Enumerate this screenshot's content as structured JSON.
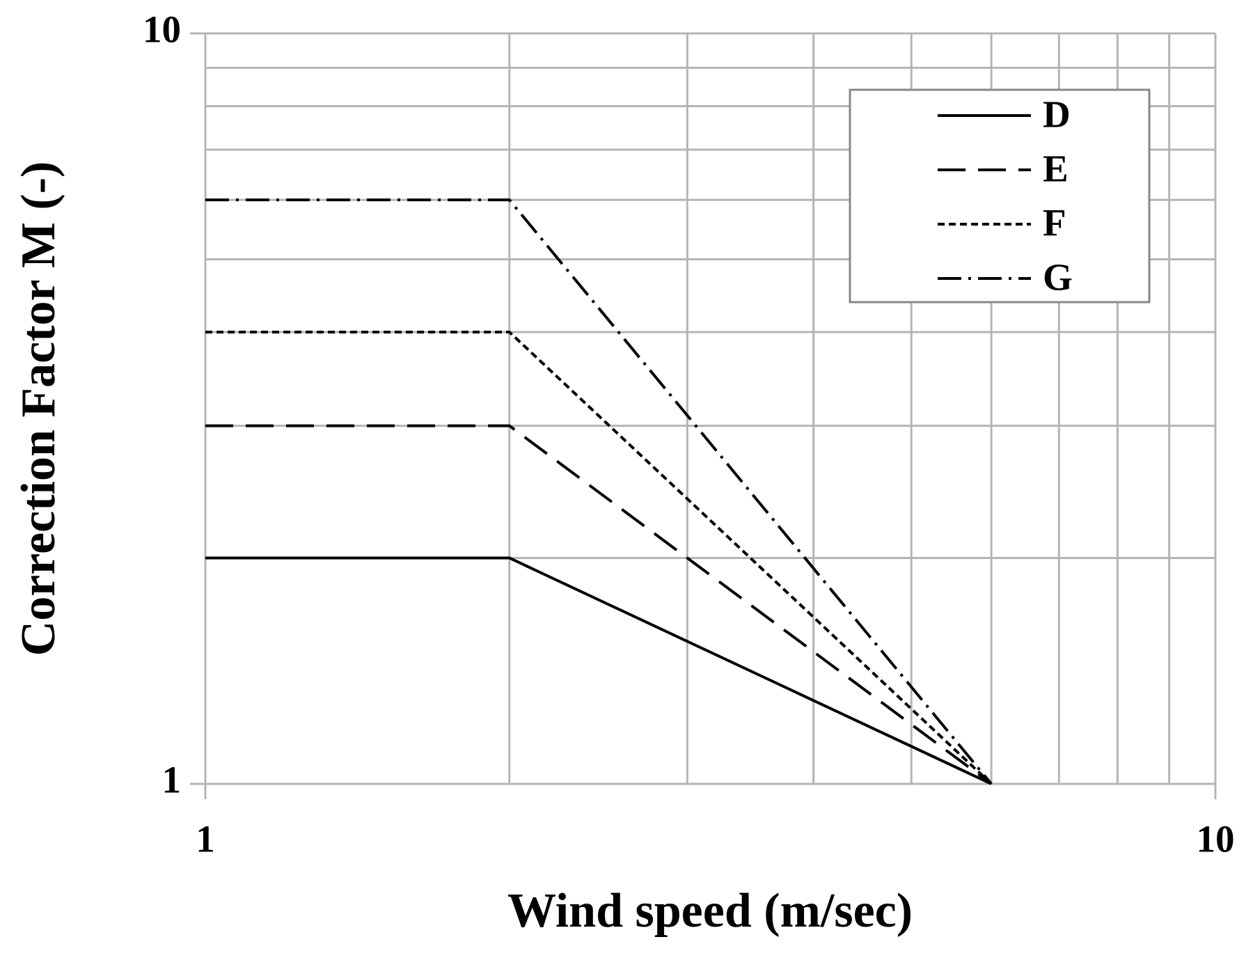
{
  "chart_data": {
    "type": "line",
    "x_label": "Wind speed (m/sec)",
    "y_label": "Correction Factor M (-)",
    "x": [
      1,
      2,
      6
    ],
    "series": [
      {
        "name": "D",
        "color": "#000000",
        "dash": "solid",
        "values": [
          2,
          2,
          1
        ]
      },
      {
        "name": "E",
        "color": "#000000",
        "dash": "dashed",
        "values": [
          3,
          3,
          1
        ]
      },
      {
        "name": "F",
        "color": "#000000",
        "dash": "dotted",
        "values": [
          4,
          4,
          1
        ]
      },
      {
        "name": "G",
        "color": "#000000",
        "dash": "dashdot",
        "values": [
          6,
          6,
          1
        ]
      }
    ],
    "xscale": "log",
    "yscale": "log",
    "xlim": [
      1,
      10
    ],
    "ylim": [
      1,
      10
    ],
    "xticks": [
      1,
      10
    ],
    "yticks": [
      1,
      10
    ],
    "grid": true,
    "xgrid": [
      1,
      2,
      3,
      4,
      5,
      6,
      7,
      8,
      9,
      10
    ],
    "ygrid": [
      1,
      2,
      3,
      4,
      5,
      6,
      7,
      8,
      9,
      10
    ],
    "legend": "upper right"
  }
}
